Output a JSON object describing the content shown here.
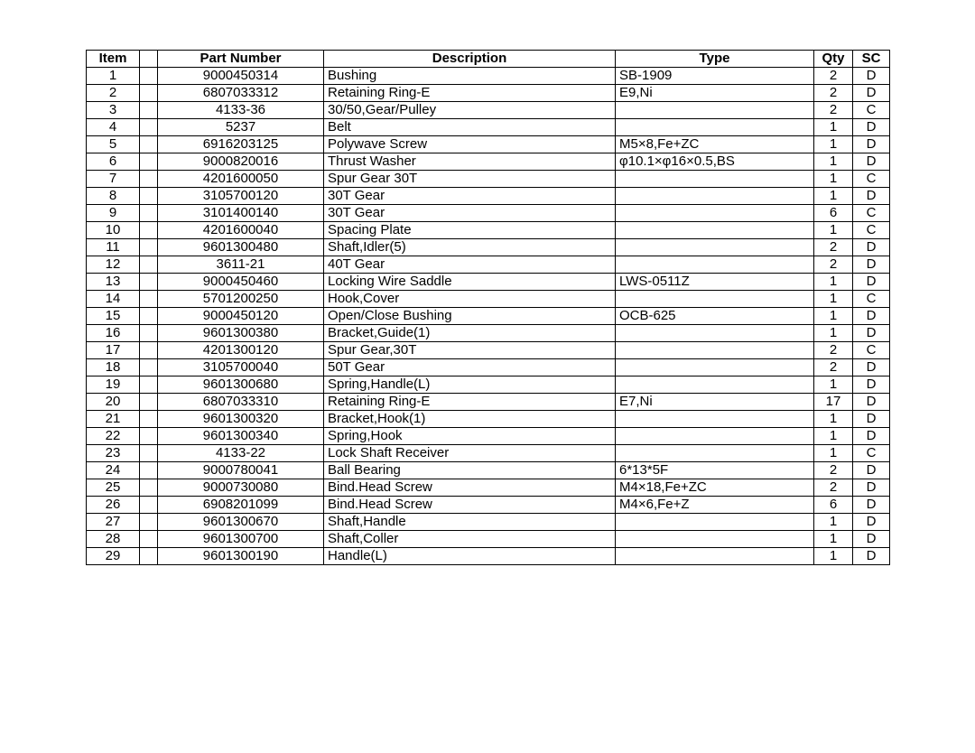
{
  "table": {
    "headers": {
      "item": "Item",
      "partNumber": "Part Number",
      "description": "Description",
      "type": "Type",
      "qty": "Qty",
      "sc": "SC"
    },
    "rows": [
      {
        "item": "1",
        "partNumber": "9000450314",
        "description": "Bushing",
        "type": "SB-1909",
        "qty": "2",
        "sc": "D"
      },
      {
        "item": "2",
        "partNumber": "6807033312",
        "description": "Retaining Ring-E",
        "type": "E9,Ni",
        "qty": "2",
        "sc": "D"
      },
      {
        "item": "3",
        "partNumber": "4133-36",
        "description": "30/50,Gear/Pulley",
        "type": "",
        "qty": "2",
        "sc": "C"
      },
      {
        "item": "4",
        "partNumber": "5237",
        "description": "Belt",
        "type": "",
        "qty": "1",
        "sc": "D"
      },
      {
        "item": "5",
        "partNumber": "6916203125",
        "description": "Polywave Screw",
        "type": "M5×8,Fe+ZC",
        "qty": "1",
        "sc": "D"
      },
      {
        "item": "6",
        "partNumber": "9000820016",
        "description": "Thrust Washer",
        "type": "φ10.1×φ16×0.5,BS",
        "qty": "1",
        "sc": "D"
      },
      {
        "item": "7",
        "partNumber": "4201600050",
        "description": "Spur Gear 30T",
        "type": "",
        "qty": "1",
        "sc": "C"
      },
      {
        "item": "8",
        "partNumber": "3105700120",
        "description": "30T Gear",
        "type": "",
        "qty": "1",
        "sc": "D"
      },
      {
        "item": "9",
        "partNumber": "3101400140",
        "description": "30T Gear",
        "type": "",
        "qty": "6",
        "sc": "C"
      },
      {
        "item": "10",
        "partNumber": "4201600040",
        "description": "Spacing Plate",
        "type": "",
        "qty": "1",
        "sc": "C"
      },
      {
        "item": "11",
        "partNumber": "9601300480",
        "description": "Shaft,Idler(5)",
        "type": "",
        "qty": "2",
        "sc": "D"
      },
      {
        "item": "12",
        "partNumber": "3611-21",
        "description": "40T    Gear",
        "type": "",
        "qty": "2",
        "sc": "D"
      },
      {
        "item": "13",
        "partNumber": "9000450460",
        "description": "Locking Wire Saddle",
        "type": "LWS-0511Z",
        "qty": "1",
        "sc": "D"
      },
      {
        "item": "14",
        "partNumber": "5701200250",
        "description": "Hook,Cover",
        "type": "",
        "qty": "1",
        "sc": "C"
      },
      {
        "item": "15",
        "partNumber": "9000450120",
        "description": "Open/Close Bushing",
        "type": "OCB-625",
        "qty": "1",
        "sc": "D"
      },
      {
        "item": "16",
        "partNumber": "9601300380",
        "description": "Bracket,Guide(1)",
        "type": "",
        "qty": "1",
        "sc": "D"
      },
      {
        "item": "17",
        "partNumber": "4201300120",
        "description": "Spur Gear,30T",
        "type": "",
        "qty": "2",
        "sc": "C"
      },
      {
        "item": "18",
        "partNumber": "3105700040",
        "description": "50T Gear",
        "type": "",
        "qty": "2",
        "sc": "D"
      },
      {
        "item": "19",
        "partNumber": "9601300680",
        "description": "Spring,Handle(L)",
        "type": "",
        "qty": "1",
        "sc": "D"
      },
      {
        "item": "20",
        "partNumber": "6807033310",
        "description": "Retaining Ring-E",
        "type": "E7,Ni",
        "qty": "17",
        "sc": "D"
      },
      {
        "item": "21",
        "partNumber": "9601300320",
        "description": "Bracket,Hook(1)",
        "type": "",
        "qty": "1",
        "sc": "D"
      },
      {
        "item": "22",
        "partNumber": "9601300340",
        "description": "Spring,Hook",
        "type": "",
        "qty": "1",
        "sc": "D"
      },
      {
        "item": "23",
        "partNumber": "4133-22",
        "description": "Lock Shaft Receiver",
        "type": "",
        "qty": "1",
        "sc": "C"
      },
      {
        "item": "24",
        "partNumber": "9000780041",
        "description": "Ball Bearing",
        "type": "6*13*5F",
        "qty": "2",
        "sc": "D"
      },
      {
        "item": "25",
        "partNumber": "9000730080",
        "description": "Bind.Head Screw",
        "type": "M4×18,Fe+ZC",
        "qty": "2",
        "sc": "D"
      },
      {
        "item": "26",
        "partNumber": "6908201099",
        "description": "Bind.Head Screw",
        "type": "M4×6,Fe+Z",
        "qty": "6",
        "sc": "D"
      },
      {
        "item": "27",
        "partNumber": "9601300670",
        "description": "Shaft,Handle",
        "type": "",
        "qty": "1",
        "sc": "D"
      },
      {
        "item": "28",
        "partNumber": "9601300700",
        "description": "Shaft,Coller",
        "type": "",
        "qty": "1",
        "sc": "D"
      },
      {
        "item": "29",
        "partNumber": "9601300190",
        "description": "Handle(L)",
        "type": "",
        "qty": "1",
        "sc": "D"
      }
    ]
  }
}
